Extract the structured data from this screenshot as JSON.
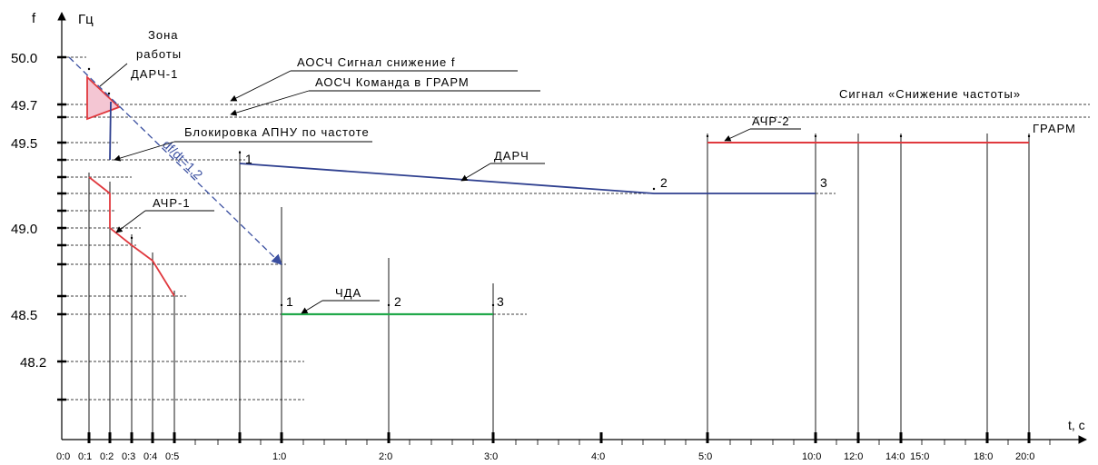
{
  "axes": {
    "y_name": "f",
    "y_unit": "Гц",
    "x_name": "t, c",
    "y_ticks": [
      "50.0",
      "49.7",
      "49.5",
      "49.0",
      "48.5",
      "48.2"
    ],
    "x_ticks": [
      "0:0",
      "0:1",
      "0:2",
      "0:3",
      "0:4",
      "0:5",
      "1:0",
      "2:0",
      "3:0",
      "4:0",
      "5:0",
      "10:0",
      "12:0",
      "14:0",
      "15:0",
      "18:0",
      "20:0"
    ]
  },
  "labels": {
    "zone_line1": "Зона",
    "zone_line2": "работы",
    "zone_line3": "ДАРЧ-1",
    "aoscf_signal": "АОСЧ Сигнал снижение f",
    "aoscf_command": "АОСЧ Команда в ГРАРМ",
    "signal_snizh": "Сигнал «Снижение частоты»",
    "grarm": "ГРАРМ",
    "blokirovka": "Блокировка АПНУ по частоте",
    "dfdt": "df/dt=1,2",
    "darch": "ДАРЧ",
    "achr1": "АЧР-1",
    "achr2": "АЧР-2",
    "chda": "ЧДА",
    "darch_p1": "1",
    "darch_p2": "2",
    "darch_p3": "3",
    "chda_p1": "1",
    "chda_p2": "2",
    "chda_p3": "3"
  },
  "colors": {
    "darch": "#2e3f8f",
    "achr": "#e0393e",
    "chda": "#22a94b",
    "zone_fill": "#f4c6d3",
    "dfdt": "#3a4fa0"
  }
}
